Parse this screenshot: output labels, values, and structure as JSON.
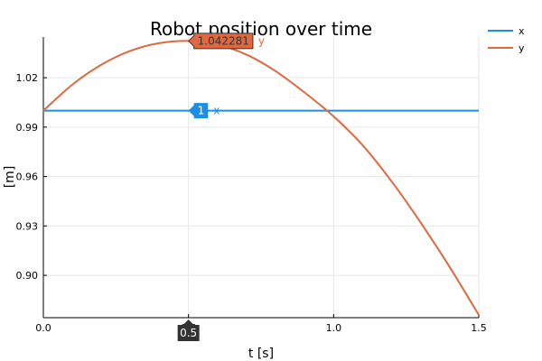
{
  "chart_data": {
    "type": "line",
    "title": "Robot position over time",
    "xlabel": "t [s]",
    "ylabel": "[m]",
    "xlim": [
      0.0,
      1.5
    ],
    "ylim": [
      0.8743,
      1.0447
    ],
    "xticks": [
      0.0,
      0.5,
      1.0,
      1.5
    ],
    "xtick_labels": [
      "0.0",
      "0.5",
      "1.0",
      "1.5"
    ],
    "yticks": [
      0.9,
      0.93,
      0.96,
      0.99,
      1.02
    ],
    "ytick_labels": [
      "0.90",
      "0.93",
      "0.96",
      "0.99",
      "1.02"
    ],
    "grid": true,
    "legend_position": "top-right",
    "series": [
      {
        "name": "x",
        "color": "#1a8fe3",
        "x": [
          0.0,
          0.1,
          0.2,
          0.3,
          0.4,
          0.5,
          0.6,
          0.7,
          0.8,
          0.9,
          1.0,
          1.1,
          1.2,
          1.3,
          1.4,
          1.5
        ],
        "values": [
          1.0,
          1.0,
          1.0,
          1.0,
          1.0,
          1.0,
          1.0,
          1.0,
          1.0,
          1.0,
          1.0,
          1.0,
          1.0,
          1.0,
          1.0,
          1.0
        ]
      },
      {
        "name": "y",
        "color": "#e0683f",
        "x": [
          0.0,
          0.1,
          0.2,
          0.3,
          0.4,
          0.5,
          0.6,
          0.7,
          0.8,
          0.9,
          1.0,
          1.1,
          1.2,
          1.3,
          1.4,
          1.5
        ],
        "values": [
          1.0,
          1.0158,
          1.0279,
          1.0363,
          1.041,
          1.04228,
          1.04,
          1.034,
          1.024,
          1.011,
          0.9965,
          0.979,
          0.957,
          0.932,
          0.905,
          0.876
        ]
      }
    ],
    "annotations": [
      {
        "series": "x",
        "label": "1",
        "name_label": "x"
      },
      {
        "series": "y",
        "label": "1.042281",
        "name_label": "y"
      }
    ],
    "cursor": {
      "x": 0.5,
      "label": "0.5"
    }
  }
}
